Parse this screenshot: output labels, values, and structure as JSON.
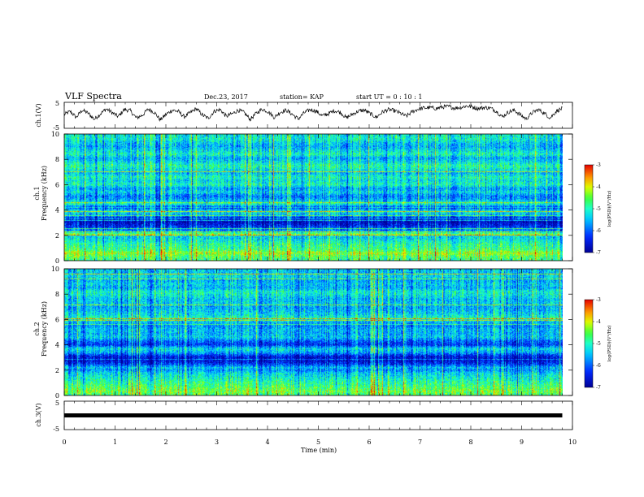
{
  "header": {
    "title": "VLF Spectra",
    "date": "Dec.23, 2017",
    "station": "station= KAP",
    "start": "start  UT =   0 : 10 : 1"
  },
  "colors": {
    "spectrum_low": "#0000c8",
    "spectrum_mid": "#10e0ff",
    "spectrum_green": "#30ff60",
    "spectrum_high": "#ff2020",
    "waveform": "#000000"
  },
  "chart_data": [
    {
      "id": "ch1-waveform",
      "type": "line",
      "ylabel": "ch.1(V)",
      "ylim": [
        -5,
        5
      ],
      "yticks": [
        "5",
        "-5"
      ],
      "xlim": [
        0,
        10
      ],
      "x_end": 9.8,
      "values": [
        0.3,
        1.5,
        -0.8,
        2.0,
        0.8,
        -1.5,
        0.5,
        2.5,
        1.0,
        -0.5,
        2.2,
        1.8,
        -1.0,
        0.0,
        2.4,
        1.2,
        -1.8,
        0.4,
        2.0,
        1.5,
        -0.6,
        1.0,
        2.6,
        0.2,
        -1.2,
        1.6,
        2.2,
        -0.4,
        0.6,
        2.0,
        1.0,
        -1.6,
        0.8,
        2.4,
        1.4,
        -0.8,
        1.2,
        2.0,
        0.4,
        -1.4,
        1.0,
        2.2,
        1.6,
        -0.2,
        0.6,
        1.8,
        1.2,
        -1.0,
        0.4,
        1.6,
        2.0,
        0.6,
        -0.8,
        1.2,
        2.2,
        1.8,
        0.8,
        -0.4,
        1.4,
        2.4,
        2.8,
        3.0,
        2.6,
        3.2,
        3.4,
        2.8,
        3.0,
        3.6,
        3.2,
        2.6,
        3.0,
        2.8,
        1.6,
        -0.6,
        1.2,
        2.0,
        0.2,
        -1.4,
        1.0,
        2.2,
        0.8,
        -1.0,
        1.6,
        2.6
      ]
    },
    {
      "id": "ch1-spectrum",
      "type": "heatmap",
      "ylabel": "ch.1\nFrequency (kHz)",
      "ylim": [
        0,
        10
      ],
      "yticks": [
        "0",
        "2",
        "4",
        "6",
        "8",
        "10"
      ],
      "xlim": [
        0,
        10
      ],
      "x_end": 9.8,
      "zlim": [
        -7,
        -3
      ],
      "colorbar_label": "log(PSD)(V²/Hz)",
      "colorbar_ticks": [
        "-3",
        "-4",
        "-5",
        "-6",
        "-7"
      ],
      "band_profile": {
        "freq_khz": [
          0.0,
          0.3,
          0.6,
          0.8,
          1.0,
          1.3,
          1.6,
          1.9,
          2.1,
          2.3,
          2.6,
          2.9,
          3.1,
          3.3,
          3.6,
          3.9,
          4.2,
          4.5,
          4.8,
          5.1,
          5.4,
          5.7,
          6.0,
          6.3,
          6.6,
          6.9,
          7.2,
          7.5,
          7.8,
          8.1,
          8.4,
          8.7,
          9.0,
          9.3,
          9.6,
          10.0
        ],
        "log_psd": [
          -4.8,
          -4.6,
          -4.2,
          -4.6,
          -4.8,
          -4.9,
          -5.2,
          -5.4,
          -4.4,
          -5.6,
          -6.2,
          -6.6,
          -6.8,
          -6.5,
          -5.6,
          -5.2,
          -6.2,
          -5.0,
          -5.6,
          -5.9,
          -5.3,
          -5.7,
          -5.0,
          -5.3,
          -5.0,
          -5.5,
          -5.2,
          -4.9,
          -5.3,
          -5.6,
          -5.0,
          -5.3,
          -5.6,
          -5.4,
          -5.1,
          -5.2
        ]
      }
    },
    {
      "id": "ch2-spectrum",
      "type": "heatmap",
      "ylabel": "ch.2\nFrequency (kHz)",
      "ylim": [
        0,
        10
      ],
      "yticks": [
        "0",
        "2",
        "4",
        "6",
        "8",
        "10"
      ],
      "xlim": [
        0,
        10
      ],
      "x_end": 9.8,
      "zlim": [
        -7,
        -3
      ],
      "colorbar_label": "log(PSD)(V²/Hz)",
      "colorbar_ticks": [
        "-3",
        "-4",
        "-5",
        "-6",
        "-7"
      ],
      "band_profile": {
        "freq_khz": [
          0.0,
          0.3,
          0.6,
          0.9,
          1.2,
          1.5,
          1.8,
          2.0,
          2.2,
          2.5,
          2.8,
          3.1,
          3.4,
          3.7,
          4.0,
          4.3,
          4.6,
          4.9,
          5.2,
          5.5,
          5.8,
          6.1,
          6.4,
          6.7,
          7.0,
          7.3,
          7.6,
          7.9,
          8.2,
          8.5,
          8.8,
          9.1,
          9.4,
          9.7,
          10.0
        ],
        "log_psd": [
          -4.7,
          -4.4,
          -4.6,
          -4.8,
          -5.0,
          -5.2,
          -5.4,
          -5.8,
          -5.5,
          -6.3,
          -6.7,
          -6.5,
          -5.6,
          -5.3,
          -6.3,
          -6.0,
          -5.4,
          -5.6,
          -5.5,
          -5.8,
          -5.5,
          -5.0,
          -5.3,
          -5.5,
          -5.6,
          -5.4,
          -5.5,
          -5.2,
          -5.1,
          -5.6,
          -5.4,
          -5.6,
          -5.3,
          -5.5,
          -5.4
        ]
      }
    },
    {
      "id": "ch3-waveform",
      "type": "line",
      "ylabel": "ch.3(V)",
      "ylim": [
        -5,
        5
      ],
      "yticks": [
        "5",
        "-5"
      ],
      "xlim": [
        0,
        10
      ],
      "x_end": 9.8,
      "values": [
        0.0,
        0.0
      ]
    }
  ],
  "xaxis": {
    "label": "Time (min)",
    "ticks": [
      "0",
      "1",
      "2",
      "3",
      "4",
      "5",
      "6",
      "7",
      "8",
      "9",
      "10"
    ]
  }
}
